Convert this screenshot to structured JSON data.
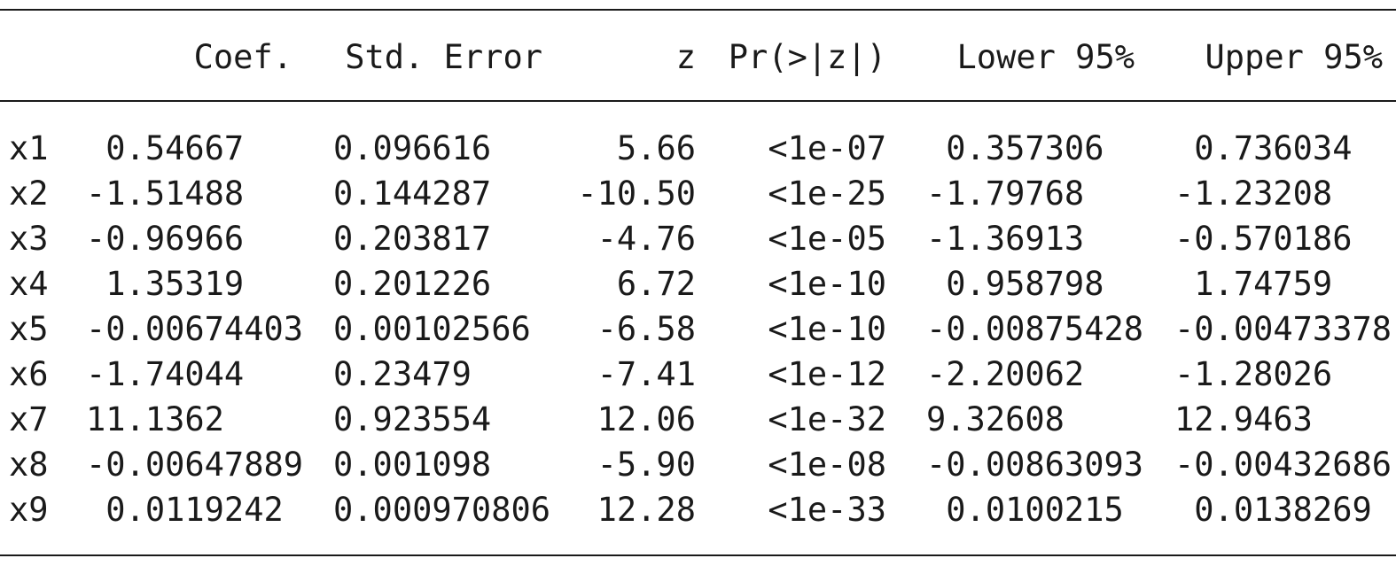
{
  "table": {
    "headers": {
      "coef": "Coef.",
      "stderr": "Std. Error",
      "z": "z",
      "p": "Pr(>|z|)",
      "lower": "Lower 95%",
      "upper": "Upper 95%"
    },
    "rows": [
      {
        "name": "x1",
        "coef": " 0.54667",
        "stderr": "0.096616",
        "z": "5.66",
        "p": "<1e-07",
        "lower": " 0.357306",
        "upper": " 0.736034"
      },
      {
        "name": "x2",
        "coef": "-1.51488",
        "stderr": "0.144287",
        "z": "-10.50",
        "p": "<1e-25",
        "lower": "-1.79768",
        "upper": "-1.23208"
      },
      {
        "name": "x3",
        "coef": "-0.96966",
        "stderr": "0.203817",
        "z": "-4.76",
        "p": "<1e-05",
        "lower": "-1.36913",
        "upper": "-0.570186"
      },
      {
        "name": "x4",
        "coef": " 1.35319",
        "stderr": "0.201226",
        "z": "6.72",
        "p": "<1e-10",
        "lower": " 0.958798",
        "upper": " 1.74759"
      },
      {
        "name": "x5",
        "coef": "-0.00674403",
        "stderr": "0.00102566",
        "z": "-6.58",
        "p": "<1e-10",
        "lower": "-0.00875428",
        "upper": "-0.00473378"
      },
      {
        "name": "x6",
        "coef": "-1.74044",
        "stderr": "0.23479",
        "z": "-7.41",
        "p": "<1e-12",
        "lower": "-2.20062",
        "upper": "-1.28026"
      },
      {
        "name": "x7",
        "coef": "11.1362",
        "stderr": "0.923554",
        "z": "12.06",
        "p": "<1e-32",
        "lower": "9.32608",
        "upper": "12.9463"
      },
      {
        "name": "x8",
        "coef": "-0.00647889",
        "stderr": "0.001098",
        "z": "-5.90",
        "p": "<1e-08",
        "lower": "-0.00863093",
        "upper": "-0.00432686"
      },
      {
        "name": "x9",
        "coef": " 0.0119242",
        "stderr": "0.000970806",
        "z": "12.28",
        "p": "<1e-33",
        "lower": " 0.0100215",
        "upper": " 0.0138269"
      }
    ]
  }
}
